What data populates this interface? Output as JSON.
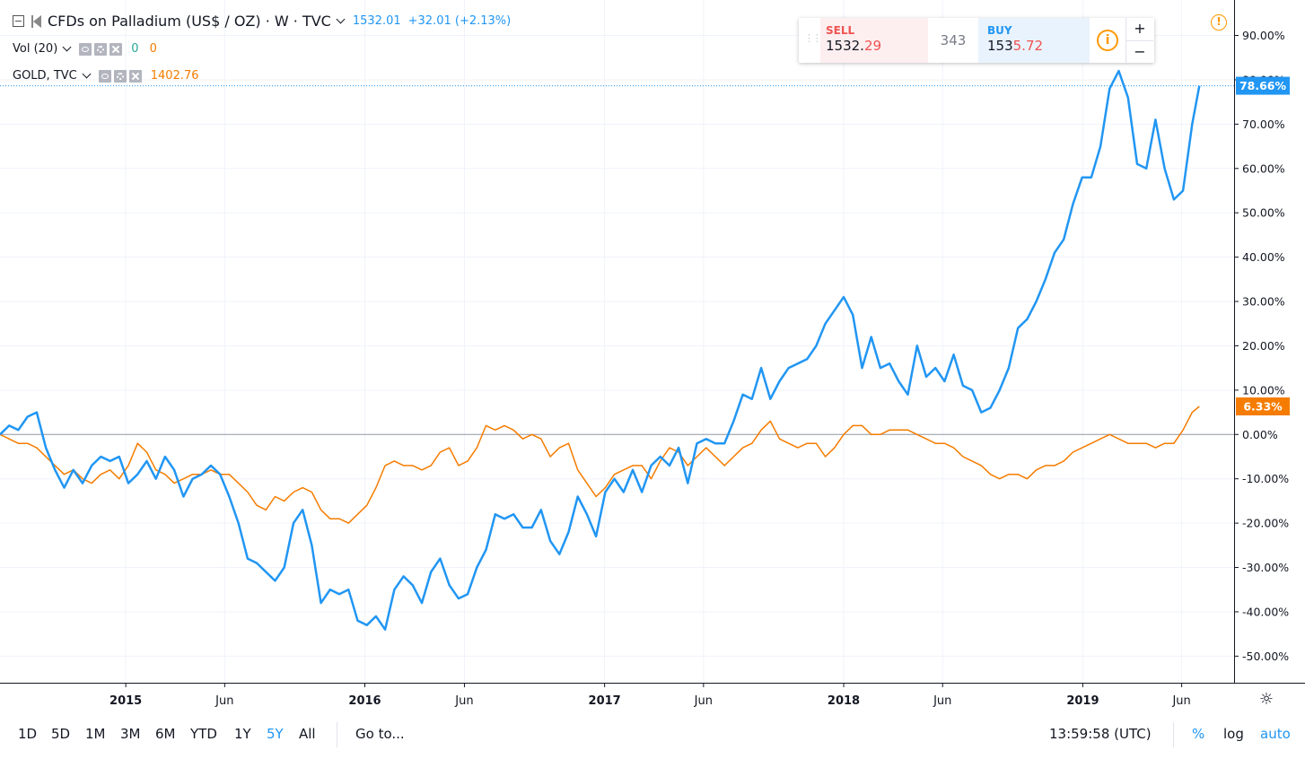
{
  "header": {
    "title": "CFDs on Palladium (US$ / OZ) · W · TVC",
    "last_value": "1532.01",
    "change": "+32.01 (+2.13%)",
    "volume_label": "Vol (20)",
    "volume_val_a": "0",
    "volume_val_b": "0",
    "compare_label": "GOLD, TVC",
    "compare_value": "1402.76"
  },
  "trade_panel": {
    "sell_label": "SELL",
    "sell_price_main": "1532.",
    "sell_price_hl": "29",
    "spread": "343",
    "buy_label": "BUY",
    "buy_price_main": "153",
    "buy_price_hl": "5.72",
    "info_icon": "i",
    "plus": "+",
    "minus": "−"
  },
  "alert_icon": "!",
  "bottom_bar": {
    "ranges": [
      "1D",
      "5D",
      "1M",
      "3M",
      "6M",
      "YTD",
      "1Y",
      "5Y",
      "All"
    ],
    "active_range": "5Y",
    "goto": "Go to...",
    "clock": "13:59:58 (UTC)",
    "percent": "%",
    "log": "log",
    "auto": "auto"
  },
  "colors": {
    "palladium": "#2196f3",
    "gold": "#f57c00",
    "grid": "#f0f3fa",
    "axis": "#131722"
  },
  "chart_data": {
    "type": "line",
    "y_unit": "%",
    "ylim": [
      -56,
      98
    ],
    "y_ticks": [
      "90.00%",
      "80.00%",
      "70.00%",
      "60.00%",
      "50.00%",
      "40.00%",
      "30.00%",
      "20.00%",
      "10.00%",
      "0.00%",
      "-10.00%",
      "-20.00%",
      "-30.00%",
      "-40.00%",
      "-50.00%"
    ],
    "x_ticks": [
      "2015",
      "Jun",
      "2016",
      "Jun",
      "2017",
      "Jun",
      "2018",
      "Jun",
      "2019",
      "Jun"
    ],
    "x_ticks_bold": [
      "2015",
      "2016",
      "2017",
      "2018",
      "2019"
    ],
    "x_tick_dates": [
      "2015-01-01",
      "2015-06-01",
      "2016-01-01",
      "2016-06-01",
      "2017-01-01",
      "2017-06-01",
      "2018-01-01",
      "2018-06-01",
      "2019-01-01",
      "2019-06-01"
    ],
    "x_range": [
      "2014-06-23",
      "2019-08-20"
    ],
    "grid": true,
    "series": [
      {
        "name": "CFDs on Palladium (US$ / OZ)",
        "color": "#2196f3",
        "last_label": "78.66%",
        "points": [
          [
            "2014-06-23",
            0
          ],
          [
            "2014-07-07",
            2
          ],
          [
            "2014-07-21",
            1
          ],
          [
            "2014-08-04",
            4
          ],
          [
            "2014-08-18",
            5
          ],
          [
            "2014-09-01",
            -3
          ],
          [
            "2014-09-15",
            -8
          ],
          [
            "2014-09-29",
            -12
          ],
          [
            "2014-10-13",
            -8
          ],
          [
            "2014-10-27",
            -11
          ],
          [
            "2014-11-10",
            -7
          ],
          [
            "2014-11-24",
            -5
          ],
          [
            "2014-12-08",
            -6
          ],
          [
            "2014-12-22",
            -5
          ],
          [
            "2015-01-05",
            -11
          ],
          [
            "2015-01-19",
            -9
          ],
          [
            "2015-02-02",
            -6
          ],
          [
            "2015-02-16",
            -10
          ],
          [
            "2015-03-02",
            -5
          ],
          [
            "2015-03-16",
            -8
          ],
          [
            "2015-03-30",
            -14
          ],
          [
            "2015-04-13",
            -10
          ],
          [
            "2015-04-27",
            -9
          ],
          [
            "2015-05-11",
            -7
          ],
          [
            "2015-05-25",
            -9
          ],
          [
            "2015-06-08",
            -14
          ],
          [
            "2015-06-22",
            -20
          ],
          [
            "2015-07-06",
            -28
          ],
          [
            "2015-07-20",
            -29
          ],
          [
            "2015-08-03",
            -31
          ],
          [
            "2015-08-17",
            -33
          ],
          [
            "2015-08-31",
            -30
          ],
          [
            "2015-09-14",
            -20
          ],
          [
            "2015-09-28",
            -17
          ],
          [
            "2015-10-12",
            -25
          ],
          [
            "2015-10-26",
            -38
          ],
          [
            "2015-11-09",
            -35
          ],
          [
            "2015-11-23",
            -36
          ],
          [
            "2015-12-07",
            -35
          ],
          [
            "2015-12-21",
            -42
          ],
          [
            "2016-01-04",
            -43
          ],
          [
            "2016-01-18",
            -41
          ],
          [
            "2016-02-01",
            -44
          ],
          [
            "2016-02-15",
            -35
          ],
          [
            "2016-02-29",
            -32
          ],
          [
            "2016-03-14",
            -34
          ],
          [
            "2016-03-28",
            -38
          ],
          [
            "2016-04-11",
            -31
          ],
          [
            "2016-04-25",
            -28
          ],
          [
            "2016-05-09",
            -34
          ],
          [
            "2016-05-23",
            -37
          ],
          [
            "2016-06-06",
            -36
          ],
          [
            "2016-06-20",
            -30
          ],
          [
            "2016-07-04",
            -26
          ],
          [
            "2016-07-18",
            -18
          ],
          [
            "2016-08-01",
            -19
          ],
          [
            "2016-08-15",
            -18
          ],
          [
            "2016-08-29",
            -21
          ],
          [
            "2016-09-12",
            -21
          ],
          [
            "2016-09-26",
            -17
          ],
          [
            "2016-10-10",
            -24
          ],
          [
            "2016-10-24",
            -27
          ],
          [
            "2016-11-07",
            -22
          ],
          [
            "2016-11-21",
            -14
          ],
          [
            "2016-12-05",
            -18
          ],
          [
            "2016-12-19",
            -23
          ],
          [
            "2017-01-02",
            -13
          ],
          [
            "2017-01-16",
            -10
          ],
          [
            "2017-01-30",
            -13
          ],
          [
            "2017-02-13",
            -8
          ],
          [
            "2017-02-27",
            -13
          ],
          [
            "2017-03-13",
            -7
          ],
          [
            "2017-03-27",
            -5
          ],
          [
            "2017-04-10",
            -7
          ],
          [
            "2017-04-24",
            -3
          ],
          [
            "2017-05-08",
            -11
          ],
          [
            "2017-05-22",
            -2
          ],
          [
            "2017-06-05",
            -1
          ],
          [
            "2017-06-19",
            -2
          ],
          [
            "2017-07-03",
            -2
          ],
          [
            "2017-07-17",
            3
          ],
          [
            "2017-07-31",
            9
          ],
          [
            "2017-08-14",
            8
          ],
          [
            "2017-08-28",
            15
          ],
          [
            "2017-09-11",
            8
          ],
          [
            "2017-09-25",
            12
          ],
          [
            "2017-10-09",
            15
          ],
          [
            "2017-10-23",
            16
          ],
          [
            "2017-11-06",
            17
          ],
          [
            "2017-11-20",
            20
          ],
          [
            "2017-12-04",
            25
          ],
          [
            "2017-12-18",
            28
          ],
          [
            "2018-01-01",
            31
          ],
          [
            "2018-01-15",
            27
          ],
          [
            "2018-01-29",
            15
          ],
          [
            "2018-02-12",
            22
          ],
          [
            "2018-02-26",
            15
          ],
          [
            "2018-03-12",
            16
          ],
          [
            "2018-03-26",
            12
          ],
          [
            "2018-04-09",
            9
          ],
          [
            "2018-04-23",
            20
          ],
          [
            "2018-05-07",
            13
          ],
          [
            "2018-05-21",
            15
          ],
          [
            "2018-06-04",
            12
          ],
          [
            "2018-06-18",
            18
          ],
          [
            "2018-07-02",
            11
          ],
          [
            "2018-07-16",
            10
          ],
          [
            "2018-07-30",
            5
          ],
          [
            "2018-08-13",
            6
          ],
          [
            "2018-08-27",
            10
          ],
          [
            "2018-09-10",
            15
          ],
          [
            "2018-09-24",
            24
          ],
          [
            "2018-10-08",
            26
          ],
          [
            "2018-10-22",
            30
          ],
          [
            "2018-11-05",
            35
          ],
          [
            "2018-11-19",
            41
          ],
          [
            "2018-12-03",
            44
          ],
          [
            "2018-12-17",
            52
          ],
          [
            "2018-12-31",
            58
          ],
          [
            "2019-01-14",
            58
          ],
          [
            "2019-01-28",
            65
          ],
          [
            "2019-02-11",
            78
          ],
          [
            "2019-02-25",
            82
          ],
          [
            "2019-03-11",
            76
          ],
          [
            "2019-03-25",
            61
          ],
          [
            "2019-04-08",
            60
          ],
          [
            "2019-04-22",
            71
          ],
          [
            "2019-05-06",
            60
          ],
          [
            "2019-05-20",
            53
          ],
          [
            "2019-06-03",
            55
          ],
          [
            "2019-06-17",
            70
          ],
          [
            "2019-06-28",
            78.66
          ]
        ]
      },
      {
        "name": "GOLD, TVC",
        "color": "#f57c00",
        "last_label": "6.33%",
        "points": [
          [
            "2014-06-23",
            0
          ],
          [
            "2014-07-07",
            -1
          ],
          [
            "2014-07-21",
            -2
          ],
          [
            "2014-08-04",
            -2
          ],
          [
            "2014-08-18",
            -3
          ],
          [
            "2014-09-01",
            -5
          ],
          [
            "2014-09-15",
            -7
          ],
          [
            "2014-09-29",
            -9
          ],
          [
            "2014-10-13",
            -8
          ],
          [
            "2014-10-27",
            -10
          ],
          [
            "2014-11-10",
            -11
          ],
          [
            "2014-11-24",
            -9
          ],
          [
            "2014-12-08",
            -8
          ],
          [
            "2014-12-22",
            -10
          ],
          [
            "2015-01-05",
            -7
          ],
          [
            "2015-01-19",
            -2
          ],
          [
            "2015-02-02",
            -4
          ],
          [
            "2015-02-16",
            -8
          ],
          [
            "2015-03-02",
            -9
          ],
          [
            "2015-03-16",
            -11
          ],
          [
            "2015-03-30",
            -10
          ],
          [
            "2015-04-13",
            -9
          ],
          [
            "2015-04-27",
            -9
          ],
          [
            "2015-05-11",
            -8
          ],
          [
            "2015-05-25",
            -9
          ],
          [
            "2015-06-08",
            -9
          ],
          [
            "2015-06-22",
            -11
          ],
          [
            "2015-07-06",
            -13
          ],
          [
            "2015-07-20",
            -16
          ],
          [
            "2015-08-03",
            -17
          ],
          [
            "2015-08-17",
            -14
          ],
          [
            "2015-08-31",
            -15
          ],
          [
            "2015-09-14",
            -13
          ],
          [
            "2015-09-28",
            -12
          ],
          [
            "2015-10-12",
            -13
          ],
          [
            "2015-10-26",
            -17
          ],
          [
            "2015-11-09",
            -19
          ],
          [
            "2015-11-23",
            -19
          ],
          [
            "2015-12-07",
            -20
          ],
          [
            "2015-12-21",
            -18
          ],
          [
            "2016-01-04",
            -16
          ],
          [
            "2016-01-18",
            -12
          ],
          [
            "2016-02-01",
            -7
          ],
          [
            "2016-02-15",
            -6
          ],
          [
            "2016-02-29",
            -7
          ],
          [
            "2016-03-14",
            -7
          ],
          [
            "2016-03-28",
            -8
          ],
          [
            "2016-04-11",
            -7
          ],
          [
            "2016-04-25",
            -4
          ],
          [
            "2016-05-09",
            -3
          ],
          [
            "2016-05-23",
            -7
          ],
          [
            "2016-06-06",
            -6
          ],
          [
            "2016-06-20",
            -3
          ],
          [
            "2016-07-04",
            2
          ],
          [
            "2016-07-18",
            1
          ],
          [
            "2016-08-01",
            2
          ],
          [
            "2016-08-15",
            1
          ],
          [
            "2016-08-29",
            -1
          ],
          [
            "2016-09-12",
            0
          ],
          [
            "2016-09-26",
            -1
          ],
          [
            "2016-10-10",
            -5
          ],
          [
            "2016-10-24",
            -3
          ],
          [
            "2016-11-07",
            -2
          ],
          [
            "2016-11-21",
            -8
          ],
          [
            "2016-12-05",
            -11
          ],
          [
            "2016-12-19",
            -14
          ],
          [
            "2017-01-02",
            -12
          ],
          [
            "2017-01-16",
            -9
          ],
          [
            "2017-01-30",
            -8
          ],
          [
            "2017-02-13",
            -7
          ],
          [
            "2017-02-27",
            -7
          ],
          [
            "2017-03-13",
            -10
          ],
          [
            "2017-03-27",
            -6
          ],
          [
            "2017-04-10",
            -3
          ],
          [
            "2017-04-24",
            -4
          ],
          [
            "2017-05-08",
            -7
          ],
          [
            "2017-05-22",
            -5
          ],
          [
            "2017-06-05",
            -3
          ],
          [
            "2017-06-19",
            -5
          ],
          [
            "2017-07-03",
            -7
          ],
          [
            "2017-07-17",
            -5
          ],
          [
            "2017-07-31",
            -3
          ],
          [
            "2017-08-14",
            -2
          ],
          [
            "2017-08-28",
            1
          ],
          [
            "2017-09-11",
            3
          ],
          [
            "2017-09-25",
            -1
          ],
          [
            "2017-10-09",
            -2
          ],
          [
            "2017-10-23",
            -3
          ],
          [
            "2017-11-06",
            -2
          ],
          [
            "2017-11-20",
            -2
          ],
          [
            "2017-12-04",
            -5
          ],
          [
            "2017-12-18",
            -3
          ],
          [
            "2018-01-01",
            0
          ],
          [
            "2018-01-15",
            2
          ],
          [
            "2018-01-29",
            2
          ],
          [
            "2018-02-12",
            0
          ],
          [
            "2018-02-26",
            0
          ],
          [
            "2018-03-12",
            1
          ],
          [
            "2018-03-26",
            1
          ],
          [
            "2018-04-09",
            1
          ],
          [
            "2018-04-23",
            0
          ],
          [
            "2018-05-07",
            -1
          ],
          [
            "2018-05-21",
            -2
          ],
          [
            "2018-06-04",
            -2
          ],
          [
            "2018-06-18",
            -3
          ],
          [
            "2018-07-02",
            -5
          ],
          [
            "2018-07-16",
            -6
          ],
          [
            "2018-07-30",
            -7
          ],
          [
            "2018-08-13",
            -9
          ],
          [
            "2018-08-27",
            -10
          ],
          [
            "2018-09-10",
            -9
          ],
          [
            "2018-09-24",
            -9
          ],
          [
            "2018-10-08",
            -10
          ],
          [
            "2018-10-22",
            -8
          ],
          [
            "2018-11-05",
            -7
          ],
          [
            "2018-11-19",
            -7
          ],
          [
            "2018-12-03",
            -6
          ],
          [
            "2018-12-17",
            -4
          ],
          [
            "2018-12-31",
            -3
          ],
          [
            "2019-01-14",
            -2
          ],
          [
            "2019-01-28",
            -1
          ],
          [
            "2019-02-11",
            0
          ],
          [
            "2019-02-25",
            -1
          ],
          [
            "2019-03-11",
            -2
          ],
          [
            "2019-03-25",
            -2
          ],
          [
            "2019-04-08",
            -2
          ],
          [
            "2019-04-22",
            -3
          ],
          [
            "2019-05-06",
            -2
          ],
          [
            "2019-05-20",
            -2
          ],
          [
            "2019-06-03",
            1
          ],
          [
            "2019-06-17",
            5
          ],
          [
            "2019-06-28",
            6.33
          ]
        ]
      }
    ]
  }
}
